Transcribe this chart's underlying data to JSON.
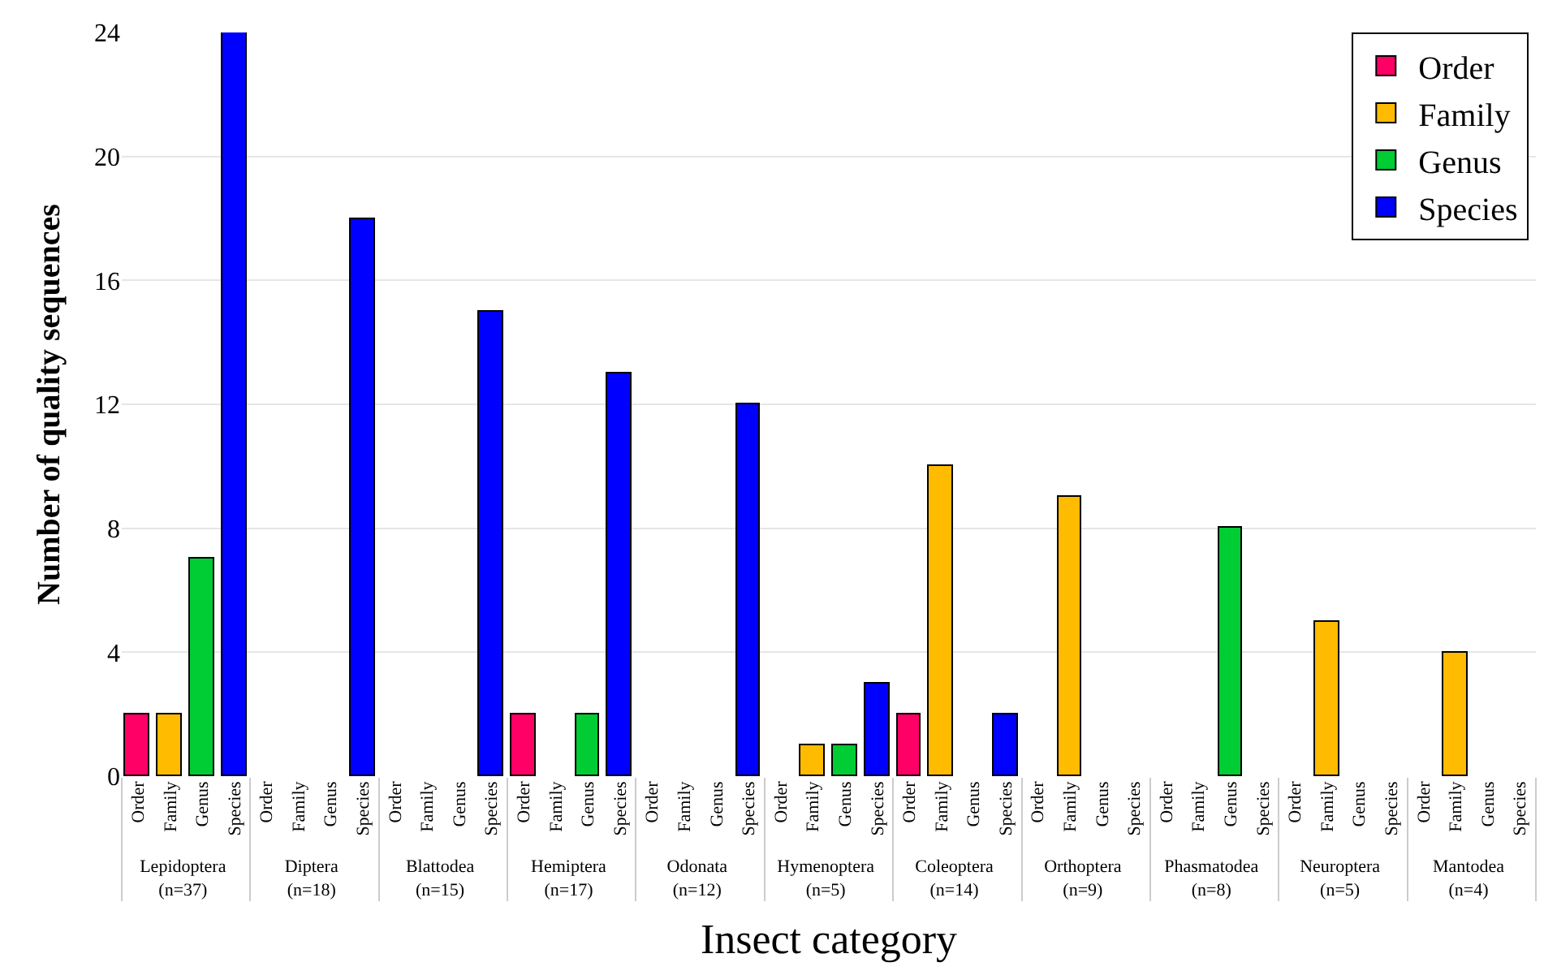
{
  "chart_data": {
    "type": "bar",
    "xlabel": "Insect category",
    "ylabel": "Number of quality sequences",
    "categories": [
      "Lepidoptera\n(n=37)",
      "Diptera\n(n=18)",
      "Blattodea\n(n=15)",
      "Hemiptera\n(n=17)",
      "Odonata\n(n=12)",
      "Hymenoptera\n(n=5)",
      "Coleoptera\n(n=14)",
      "Orthoptera\n(n=9)",
      "Phasmatodea\n(n=8)",
      "Neuroptera\n(n=5)",
      "Mantodea\n(n=4)"
    ],
    "series": [
      {
        "name": "Order",
        "color": "#ff0066",
        "values": [
          2,
          null,
          null,
          2,
          null,
          null,
          2,
          null,
          null,
          null,
          null
        ]
      },
      {
        "name": "Family",
        "color": "#ffbb00",
        "values": [
          2,
          null,
          null,
          null,
          null,
          1,
          10,
          9,
          null,
          5,
          4
        ]
      },
      {
        "name": "Genus",
        "color": "#00cc33",
        "values": [
          7,
          null,
          null,
          2,
          null,
          1,
          null,
          null,
          8,
          null,
          null
        ]
      },
      {
        "name": "Species",
        "color": "#0000ff",
        "values": [
          24,
          18,
          15,
          13,
          12,
          3,
          2,
          null,
          null,
          null,
          null
        ]
      }
    ],
    "ylim": [
      0,
      24
    ],
    "yticks": [
      0,
      4,
      8,
      12,
      16,
      20,
      24
    ],
    "grid": "y",
    "legend": "top right"
  }
}
